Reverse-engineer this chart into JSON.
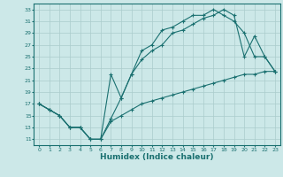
{
  "xlabel": "Humidex (Indice chaleur)",
  "bg_color": "#cce8e8",
  "grid_color": "#aacccc",
  "line_color": "#1a7070",
  "xlim": [
    -0.5,
    23.5
  ],
  "ylim": [
    10,
    34
  ],
  "xticks": [
    0,
    1,
    2,
    3,
    4,
    5,
    6,
    7,
    8,
    9,
    10,
    11,
    12,
    13,
    14,
    15,
    16,
    17,
    18,
    19,
    20,
    21,
    22,
    23
  ],
  "yticks": [
    11,
    13,
    15,
    17,
    19,
    21,
    23,
    25,
    27,
    29,
    31,
    33
  ],
  "line1_x": [
    0,
    1,
    2,
    3,
    4,
    5,
    6,
    7,
    8,
    9,
    10,
    11,
    12,
    13,
    14,
    15,
    16,
    17,
    18,
    19,
    20,
    21,
    22,
    23
  ],
  "line1_y": [
    17,
    16,
    15,
    13,
    13,
    11,
    11,
    22,
    18,
    22,
    26,
    27,
    29.5,
    30,
    31,
    32,
    32,
    33,
    32,
    31,
    29,
    25,
    25,
    22.5
  ],
  "line2_x": [
    0,
    1,
    2,
    3,
    4,
    5,
    6,
    7,
    8,
    9,
    10,
    11,
    12,
    13,
    14,
    15,
    16,
    17,
    18,
    19,
    20,
    21,
    22,
    23
  ],
  "line2_y": [
    17,
    16,
    15,
    13,
    13,
    11,
    11,
    14.5,
    18,
    22,
    24.5,
    26,
    27,
    29,
    29.5,
    30.5,
    31.5,
    32,
    33,
    32,
    25,
    28.5,
    25,
    22.5
  ],
  "line3_x": [
    0,
    1,
    2,
    3,
    4,
    5,
    6,
    7,
    8,
    9,
    10,
    11,
    12,
    13,
    14,
    15,
    16,
    17,
    18,
    19,
    20,
    21,
    22,
    23
  ],
  "line3_y": [
    17,
    16,
    15,
    13,
    13,
    11,
    11,
    14,
    15,
    16,
    17,
    17.5,
    18,
    18.5,
    19,
    19.5,
    20,
    20.5,
    21,
    21.5,
    22,
    22,
    22.5,
    22.5
  ]
}
